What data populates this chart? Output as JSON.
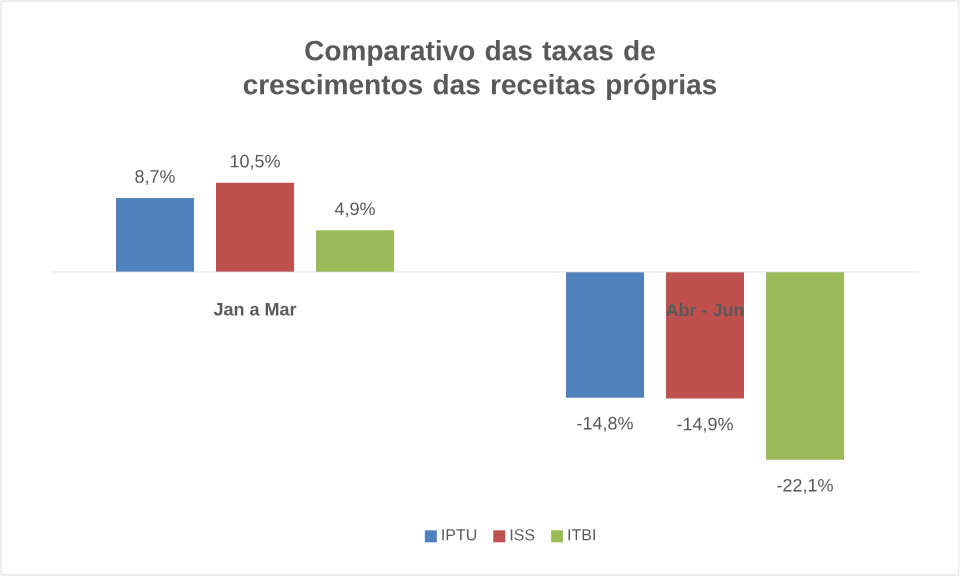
{
  "chart_data": {
    "type": "bar",
    "title": "Comparativo das taxas de crescimentos das receitas próprias",
    "categories": [
      "Jan a Mar",
      "Abr - Jun"
    ],
    "series": [
      {
        "name": "IPTU",
        "color": "#4f81bd",
        "values": [
          8.7,
          -14.8
        ],
        "value_labels": [
          "8,7%",
          "-14,8%"
        ]
      },
      {
        "name": "ISS",
        "color": "#c0504d",
        "values": [
          10.5,
          -14.9
        ],
        "value_labels": [
          "10,5%",
          "-14,9%"
        ]
      },
      {
        "name": "ITBI",
        "color": "#9bbb59",
        "values": [
          4.9,
          -22.1
        ],
        "value_labels": [
          "4,9%",
          "-22,1%"
        ]
      }
    ],
    "legend": "bottom"
  }
}
